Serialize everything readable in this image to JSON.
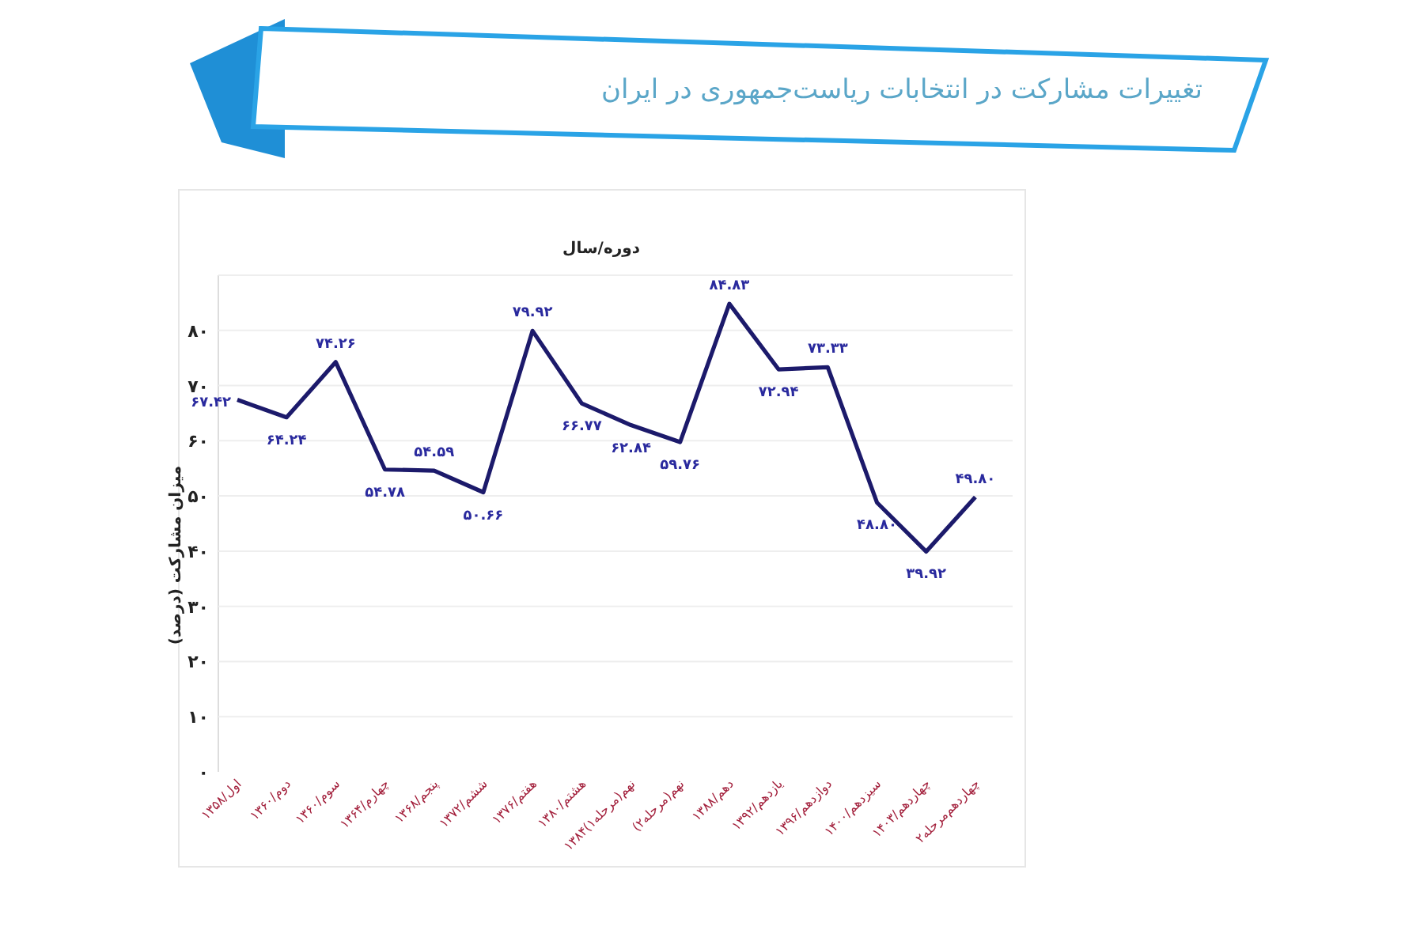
{
  "chart_data": {
    "type": "line",
    "title": "تغییرات مشارکت در انتخابات ریاست‌جمهوری در ایران",
    "xlabel": "دوره/سال",
    "ylabel": "میزان مشارکت (درصد)",
    "categories": [
      "اول/۱۳۵۸",
      "دوم/۱۳۶۰",
      "سوم/۱۳۶۰",
      "چهارم/۱۳۶۴",
      "پنجم/۱۳۶۸",
      "ششم/۱۳۷۲",
      "هفتم/۱۳۷۶",
      "هشتم/۱۳۸۰",
      "نهم(مرحله۱)۱۳۸۴",
      "نهم(مرحله۲)",
      "دهم/۱۳۸۸",
      "یازدهم/۱۳۹۲",
      "دوازدهم/۱۳۹۶",
      "سیزدهم/۱۴۰۰",
      "چهاردهم/۱۴۰۳",
      "چهاردهم‌مرحله۲"
    ],
    "series": [
      {
        "color": "#1c1a6b",
        "values": [
          67.42,
          64.24,
          74.26,
          54.78,
          54.59,
          50.66,
          79.92,
          66.77,
          62.84,
          59.76,
          84.83,
          72.94,
          73.33,
          48.8,
          39.92,
          49.8
        ],
        "value_labels": [
          "۶۷.۴۲",
          "۶۴.۲۴",
          "۷۴.۲۶",
          "۵۴.۷۸",
          "۵۴.۵۹",
          "۵۰.۶۶",
          "۷۹.۹۲",
          "۶۶.۷۷",
          "۶۲.۸۴",
          "۵۹.۷۶",
          "۸۴.۸۳",
          "۷۲.۹۴",
          "۷۳.۳۳",
          "۴۸.۸۰",
          "۳۹.۹۲",
          "۴۹.۸۰"
        ]
      }
    ],
    "ylim": [
      0,
      90
    ],
    "yticks": [
      {
        "value": 0,
        "label": "۰"
      },
      {
        "value": 10,
        "label": "۱۰"
      },
      {
        "value": 20,
        "label": "۲۰"
      },
      {
        "value": 30,
        "label": "۳۰"
      },
      {
        "value": 40,
        "label": "۴۰"
      },
      {
        "value": 50,
        "label": "۵۰"
      },
      {
        "value": 60,
        "label": "۶۰"
      },
      {
        "value": 70,
        "label": "۷۰"
      },
      {
        "value": 80,
        "label": "۸۰"
      }
    ],
    "grid": "y",
    "marker": "none",
    "line_style": "solid"
  }
}
